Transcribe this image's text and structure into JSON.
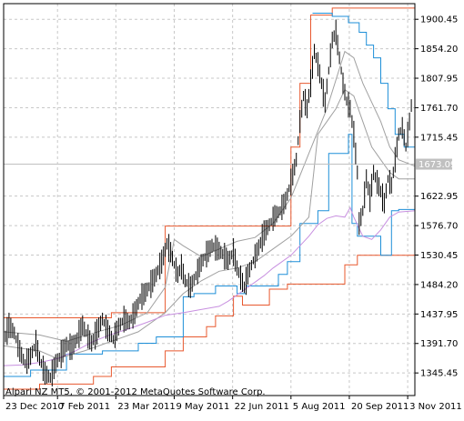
{
  "watermark": "Alpari NZ MT5, © 2001-2012 MetaQuotes Software Corp.",
  "current_price_label": "1673.09",
  "colors": {
    "candles": "#000000",
    "upper_channel": "#e8582e",
    "lower_channel": "#e8582e",
    "blue_band": "#1e8fd8",
    "gray_band": "#a0a0a0",
    "violet_line": "#c890e0",
    "price_line": "#c0c0c0",
    "price_tag_bg": "#c0c0c0"
  },
  "chart_data": {
    "type": "line",
    "ylim": [
      1310,
      1925
    ],
    "y_ticks": [
      "1900.45",
      "1854.20",
      "1807.95",
      "1761.70",
      "1715.45",
      "1622.95",
      "1576.70",
      "1530.45",
      "1484.20",
      "1437.95",
      "1391.70",
      "1345.45"
    ],
    "x_ticks": [
      "23 Dec 2010",
      "7 Feb 2011",
      "23 Mar 2011",
      "9 May 2011",
      "22 Jun 2011",
      "5 Aug 2011",
      "20 Sep 2011",
      "3 Nov 2011"
    ],
    "grid": true,
    "current_price": 1673.09,
    "series": [
      {
        "key": "close",
        "points": [
          [
            0,
            1394
          ],
          [
            6,
            1420
          ],
          [
            12,
            1408
          ],
          [
            18,
            1380
          ],
          [
            24,
            1360
          ],
          [
            30,
            1372
          ],
          [
            36,
            1392
          ],
          [
            40,
            1368
          ],
          [
            46,
            1345
          ],
          [
            52,
            1338
          ],
          [
            58,
            1360
          ],
          [
            64,
            1375
          ],
          [
            70,
            1390
          ],
          [
            76,
            1385
          ],
          [
            82,
            1400
          ],
          [
            88,
            1420
          ],
          [
            92,
            1408
          ],
          [
            98,
            1392
          ],
          [
            104,
            1410
          ],
          [
            110,
            1430
          ],
          [
            116,
            1412
          ],
          [
            122,
            1398
          ],
          [
            128,
            1418
          ],
          [
            134,
            1430
          ],
          [
            140,
            1425
          ],
          [
            146,
            1440
          ],
          [
            152,
            1462
          ],
          [
            158,
            1472
          ],
          [
            164,
            1485
          ],
          [
            170,
            1500
          ],
          [
            176,
            1520
          ],
          [
            182,
            1548
          ],
          [
            186,
            1535
          ],
          [
            190,
            1515
          ],
          [
            194,
            1500
          ],
          [
            198,
            1512
          ],
          [
            202,
            1490
          ],
          [
            208,
            1480
          ],
          [
            214,
            1498
          ],
          [
            220,
            1518
          ],
          [
            226,
            1532
          ],
          [
            232,
            1545
          ],
          [
            238,
            1540
          ],
          [
            244,
            1532
          ],
          [
            250,
            1522
          ],
          [
            256,
            1535
          ],
          [
            260,
            1510
          ],
          [
            264,
            1495
          ],
          [
            268,
            1480
          ],
          [
            272,
            1500
          ],
          [
            278,
            1522
          ],
          [
            284,
            1542
          ],
          [
            290,
            1565
          ],
          [
            296,
            1578
          ],
          [
            302,
            1592
          ],
          [
            308,
            1600
          ],
          [
            314,
            1616
          ],
          [
            320,
            1645
          ],
          [
            326,
            1680
          ],
          [
            330,
            1740
          ],
          [
            334,
            1780
          ],
          [
            338,
            1760
          ],
          [
            342,
            1800
          ],
          [
            346,
            1850
          ],
          [
            350,
            1830
          ],
          [
            354,
            1800
          ],
          [
            358,
            1770
          ],
          [
            362,
            1820
          ],
          [
            366,
            1868
          ],
          [
            370,
            1880
          ],
          [
            374,
            1840
          ],
          [
            378,
            1800
          ],
          [
            382,
            1772
          ],
          [
            386,
            1760
          ],
          [
            390,
            1720
          ],
          [
            394,
            1660
          ],
          [
            396,
            1580
          ],
          [
            400,
            1600
          ],
          [
            404,
            1650
          ],
          [
            408,
            1620
          ],
          [
            412,
            1660
          ],
          [
            416,
            1645
          ],
          [
            420,
            1630
          ],
          [
            424,
            1612
          ],
          [
            428,
            1650
          ],
          [
            432,
            1640
          ],
          [
            436,
            1680
          ],
          [
            440,
            1720
          ],
          [
            444,
            1730
          ],
          [
            448,
            1700
          ],
          [
            452,
            1740
          ],
          [
            456,
            1790
          ]
        ]
      },
      {
        "key": "upper_channel",
        "points": [
          [
            0,
            1432
          ],
          [
            60,
            1432
          ],
          [
            60,
            1432
          ],
          [
            90,
            1432
          ],
          [
            90,
            1432
          ],
          [
            120,
            1432
          ],
          [
            120,
            1440
          ],
          [
            180,
            1440
          ],
          [
            180,
            1576
          ],
          [
            320,
            1576
          ],
          [
            320,
            1700
          ],
          [
            330,
            1700
          ],
          [
            330,
            1800
          ],
          [
            342,
            1800
          ],
          [
            342,
            1907
          ],
          [
            366,
            1907
          ],
          [
            366,
            1918
          ],
          [
            458,
            1918
          ]
        ]
      },
      {
        "key": "lower_channel",
        "points": [
          [
            0,
            1320
          ],
          [
            40,
            1320
          ],
          [
            40,
            1328
          ],
          [
            100,
            1328
          ],
          [
            100,
            1340
          ],
          [
            120,
            1340
          ],
          [
            120,
            1355
          ],
          [
            180,
            1355
          ],
          [
            180,
            1380
          ],
          [
            200,
            1380
          ],
          [
            200,
            1402
          ],
          [
            226,
            1402
          ],
          [
            226,
            1418
          ],
          [
            236,
            1418
          ],
          [
            236,
            1435
          ],
          [
            256,
            1435
          ],
          [
            256,
            1466
          ],
          [
            266,
            1466
          ],
          [
            266,
            1452
          ],
          [
            296,
            1452
          ],
          [
            296,
            1477
          ],
          [
            316,
            1477
          ],
          [
            316,
            1485
          ],
          [
            380,
            1485
          ],
          [
            380,
            1515
          ],
          [
            394,
            1515
          ],
          [
            394,
            1530
          ],
          [
            458,
            1530
          ]
        ]
      },
      {
        "key": "blue_band",
        "points": [
          [
            0,
            1340
          ],
          [
            30,
            1340
          ],
          [
            30,
            1350
          ],
          [
            70,
            1350
          ],
          [
            70,
            1375
          ],
          [
            110,
            1375
          ],
          [
            110,
            1380
          ],
          [
            150,
            1380
          ],
          [
            150,
            1392
          ],
          [
            170,
            1392
          ],
          [
            170,
            1402
          ],
          [
            200,
            1402
          ],
          [
            200,
            1465
          ],
          [
            212,
            1465
          ],
          [
            212,
            1470
          ],
          [
            236,
            1470
          ],
          [
            236,
            1482
          ],
          [
            260,
            1482
          ],
          [
            260,
            1470
          ],
          [
            270,
            1470
          ],
          [
            270,
            1482
          ],
          [
            306,
            1482
          ],
          [
            306,
            1500
          ],
          [
            316,
            1500
          ],
          [
            316,
            1520
          ],
          [
            330,
            1520
          ],
          [
            330,
            1580
          ],
          [
            350,
            1580
          ],
          [
            350,
            1600
          ],
          [
            362,
            1600
          ],
          [
            362,
            1690
          ],
          [
            384,
            1690
          ],
          [
            384,
            1720
          ],
          [
            388,
            1720
          ],
          [
            388,
            1580
          ],
          [
            394,
            1580
          ],
          [
            394,
            1560
          ],
          [
            420,
            1560
          ],
          [
            420,
            1530
          ],
          [
            432,
            1530
          ],
          [
            432,
            1600
          ],
          [
            440,
            1600
          ],
          [
            440,
            1602
          ],
          [
            458,
            1602
          ]
        ]
      },
      {
        "key": "blue_band_upper",
        "points": [
          [
            344,
            1910
          ],
          [
            366,
            1910
          ],
          [
            366,
            1905
          ],
          [
            384,
            1905
          ],
          [
            384,
            1895
          ],
          [
            396,
            1895
          ],
          [
            396,
            1880
          ],
          [
            404,
            1880
          ],
          [
            404,
            1860
          ],
          [
            412,
            1860
          ],
          [
            412,
            1840
          ],
          [
            420,
            1840
          ],
          [
            420,
            1800
          ],
          [
            428,
            1800
          ],
          [
            428,
            1760
          ],
          [
            436,
            1760
          ],
          [
            436,
            1720
          ],
          [
            446,
            1720
          ],
          [
            446,
            1700
          ],
          [
            458,
            1700
          ]
        ]
      },
      {
        "key": "gray_band",
        "points": [
          [
            0,
            1388
          ],
          [
            40,
            1380
          ],
          [
            60,
            1368
          ],
          [
            90,
            1380
          ],
          [
            120,
            1395
          ],
          [
            150,
            1410
          ],
          [
            180,
            1440
          ],
          [
            200,
            1470
          ],
          [
            220,
            1490
          ],
          [
            240,
            1505
          ],
          [
            260,
            1510
          ],
          [
            280,
            1520
          ],
          [
            300,
            1540
          ],
          [
            320,
            1560
          ],
          [
            340,
            1590
          ],
          [
            350,
            1720
          ],
          [
            360,
            1740
          ],
          [
            370,
            1760
          ],
          [
            380,
            1790
          ],
          [
            390,
            1780
          ],
          [
            400,
            1740
          ],
          [
            410,
            1700
          ],
          [
            420,
            1680
          ],
          [
            430,
            1660
          ],
          [
            440,
            1650
          ],
          [
            458,
            1650
          ]
        ]
      },
      {
        "key": "gray_band_inner",
        "points": [
          [
            0,
            1410
          ],
          [
            40,
            1405
          ],
          [
            70,
            1395
          ],
          [
            100,
            1408
          ],
          [
            130,
            1420
          ],
          [
            160,
            1440
          ],
          [
            180,
            1480
          ],
          [
            190,
            1555
          ],
          [
            200,
            1545
          ],
          [
            220,
            1528
          ],
          [
            240,
            1540
          ],
          [
            260,
            1552
          ],
          [
            280,
            1558
          ],
          [
            300,
            1580
          ],
          [
            320,
            1620
          ],
          [
            340,
            1690
          ],
          [
            360,
            1760
          ],
          [
            380,
            1850
          ],
          [
            390,
            1840
          ],
          [
            400,
            1800
          ],
          [
            410,
            1770
          ],
          [
            420,
            1740
          ],
          [
            430,
            1700
          ],
          [
            440,
            1680
          ],
          [
            458,
            1670
          ]
        ]
      },
      {
        "key": "violet_line",
        "points": [
          [
            0,
            1357
          ],
          [
            20,
            1358
          ],
          [
            40,
            1362
          ],
          [
            60,
            1368
          ],
          [
            80,
            1380
          ],
          [
            100,
            1395
          ],
          [
            120,
            1406
          ],
          [
            140,
            1415
          ],
          [
            160,
            1425
          ],
          [
            180,
            1436
          ],
          [
            200,
            1440
          ],
          [
            220,
            1445
          ],
          [
            240,
            1450
          ],
          [
            250,
            1458
          ],
          [
            260,
            1468
          ],
          [
            270,
            1478
          ],
          [
            280,
            1488
          ],
          [
            290,
            1498
          ],
          [
            300,
            1510
          ],
          [
            310,
            1520
          ],
          [
            320,
            1530
          ],
          [
            330,
            1545
          ],
          [
            340,
            1560
          ],
          [
            350,
            1578
          ],
          [
            360,
            1588
          ],
          [
            370,
            1592
          ],
          [
            380,
            1590
          ],
          [
            386,
            1605
          ],
          [
            390,
            1590
          ],
          [
            400,
            1560
          ],
          [
            410,
            1555
          ],
          [
            420,
            1570
          ],
          [
            430,
            1590
          ],
          [
            440,
            1598
          ],
          [
            458,
            1600
          ]
        ]
      }
    ]
  }
}
